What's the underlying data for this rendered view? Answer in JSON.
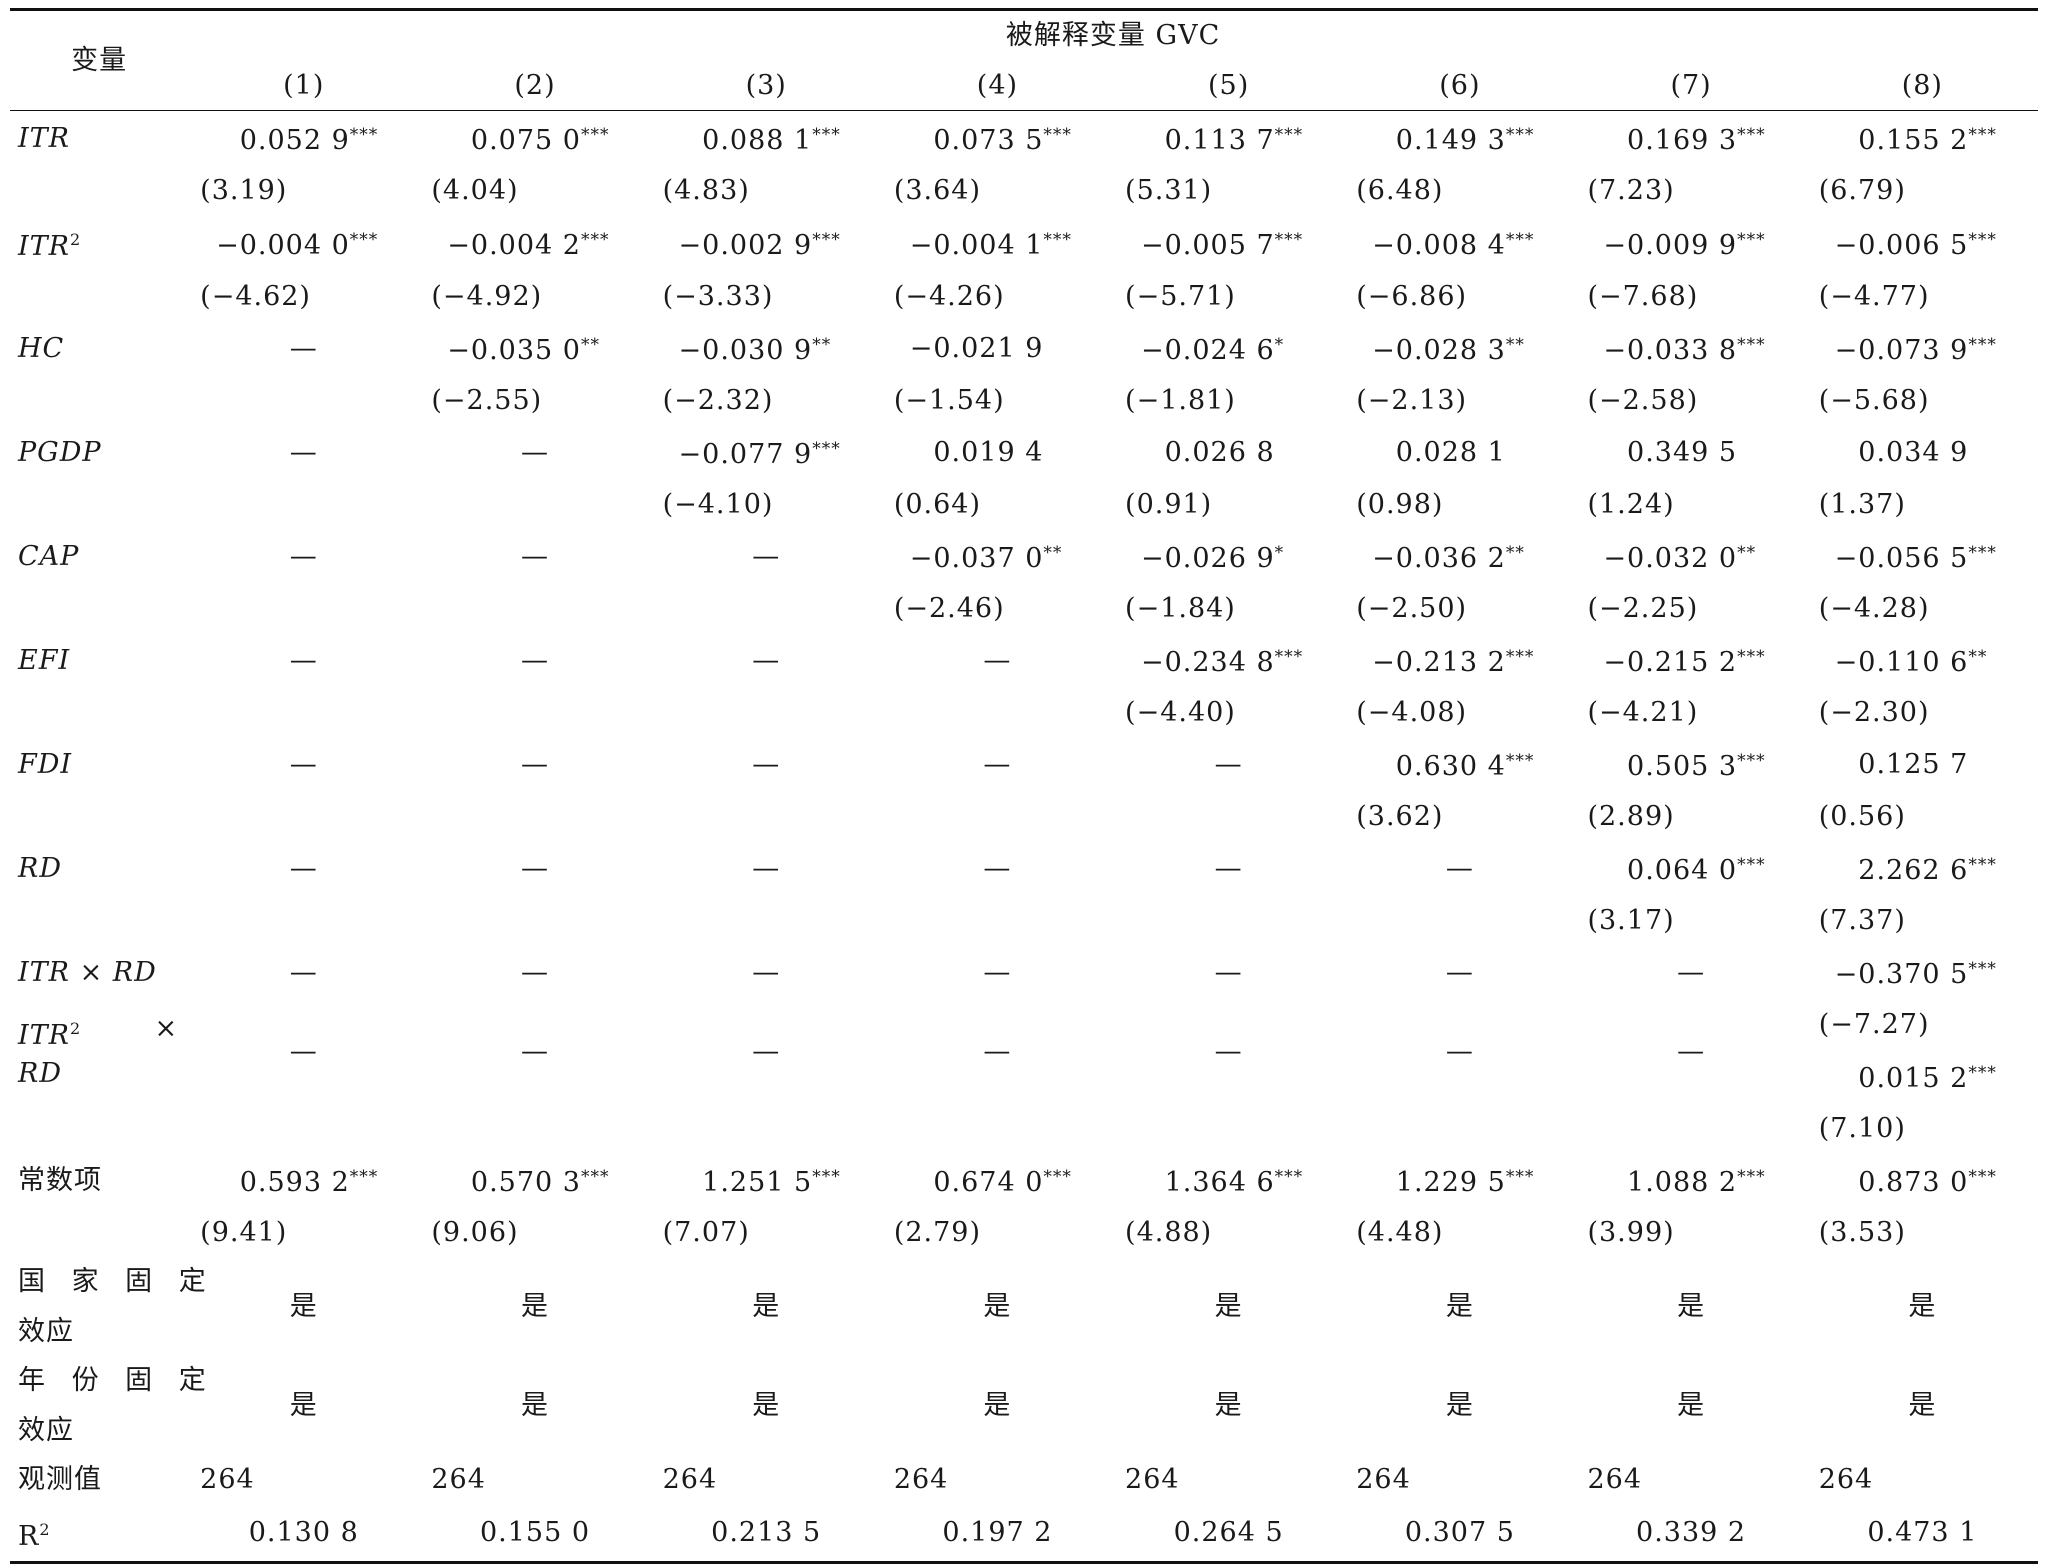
{
  "header": {
    "corner_label": "变量",
    "group_label": "被解释变量 GVC",
    "columns": [
      "(1)",
      "(2)",
      "(3)",
      "(4)",
      "(5)",
      "(6)",
      "(7)",
      "(8)"
    ]
  },
  "rows": [
    {
      "var": "ITR",
      "coef": [
        [
          "0.052 9",
          "***"
        ],
        [
          "0.075 0",
          "***"
        ],
        [
          "0.088 1",
          "***"
        ],
        [
          "0.073 5",
          "***"
        ],
        [
          "0.113 7",
          "***"
        ],
        [
          "0.149 3",
          "***"
        ],
        [
          "0.169 3",
          "***"
        ],
        [
          "0.155 2",
          "***"
        ]
      ],
      "t": [
        "(3.19)",
        "(4.04)",
        "(4.83)",
        "(3.64)",
        "(5.31)",
        "(6.48)",
        "(7.23)",
        "(6.79)"
      ]
    },
    {
      "var": "ITR",
      "var_sup": "2",
      "coef": [
        [
          "−0.004 0",
          "***"
        ],
        [
          "−0.004 2",
          "***"
        ],
        [
          "−0.002 9",
          "***"
        ],
        [
          "−0.004 1",
          "***"
        ],
        [
          "−0.005 7",
          "***"
        ],
        [
          "−0.008 4",
          "***"
        ],
        [
          "−0.009 9",
          "***"
        ],
        [
          "−0.006 5",
          "***"
        ]
      ],
      "t": [
        "(−4.62)",
        "(−4.92)",
        "(−3.33)",
        "(−4.26)",
        "(−5.71)",
        "(−6.86)",
        "(−7.68)",
        "(−4.77)"
      ]
    },
    {
      "var": "HC",
      "coef": [
        [
          "—",
          ""
        ],
        [
          "−0.035 0",
          "**"
        ],
        [
          "−0.030 9",
          "**"
        ],
        [
          "−0.021 9",
          ""
        ],
        [
          "−0.024 6",
          "*"
        ],
        [
          "−0.028 3",
          "**"
        ],
        [
          "−0.033 8",
          "***"
        ],
        [
          "−0.073 9",
          "***"
        ]
      ],
      "t": [
        "",
        "(−2.55)",
        "(−2.32)",
        "(−1.54)",
        "(−1.81)",
        "(−2.13)",
        "(−2.58)",
        "(−5.68)"
      ]
    },
    {
      "var": "PGDP",
      "coef": [
        [
          "—",
          ""
        ],
        [
          "—",
          ""
        ],
        [
          "−0.077 9",
          "***"
        ],
        [
          "0.019 4",
          ""
        ],
        [
          "0.026 8",
          ""
        ],
        [
          "0.028 1",
          ""
        ],
        [
          "0.349 5",
          ""
        ],
        [
          "0.034 9",
          ""
        ]
      ],
      "t": [
        "",
        "",
        "(−4.10)",
        "(0.64)",
        "(0.91)",
        "(0.98)",
        "(1.24)",
        "(1.37)"
      ]
    },
    {
      "var": "CAP",
      "coef": [
        [
          "—",
          ""
        ],
        [
          "—",
          ""
        ],
        [
          "—",
          ""
        ],
        [
          "−0.037 0",
          "**"
        ],
        [
          "−0.026 9",
          "*"
        ],
        [
          "−0.036 2",
          "**"
        ],
        [
          "−0.032 0",
          "**"
        ],
        [
          "−0.056 5",
          "***"
        ]
      ],
      "t": [
        "",
        "",
        "",
        "(−2.46)",
        "(−1.84)",
        "(−2.50)",
        "(−2.25)",
        "(−4.28)"
      ]
    },
    {
      "var": "EFI",
      "coef": [
        [
          "—",
          ""
        ],
        [
          "—",
          ""
        ],
        [
          "—",
          ""
        ],
        [
          "—",
          ""
        ],
        [
          "−0.234 8",
          "***"
        ],
        [
          "−0.213 2",
          "***"
        ],
        [
          "−0.215 2",
          "***"
        ],
        [
          "−0.110 6",
          "**"
        ]
      ],
      "t": [
        "",
        "",
        "",
        "",
        "(−4.40)",
        "(−4.08)",
        "(−4.21)",
        "(−2.30)"
      ]
    },
    {
      "var": "FDI",
      "coef": [
        [
          "—",
          ""
        ],
        [
          "—",
          ""
        ],
        [
          "—",
          ""
        ],
        [
          "—",
          ""
        ],
        [
          "—",
          ""
        ],
        [
          "0.630 4",
          "***"
        ],
        [
          "0.505 3",
          "***"
        ],
        [
          "0.125 7",
          ""
        ]
      ],
      "t": [
        "",
        "",
        "",
        "",
        "",
        "(3.62)",
        "(2.89)",
        "(0.56)"
      ]
    },
    {
      "var": "RD",
      "coef": [
        [
          "—",
          ""
        ],
        [
          "—",
          ""
        ],
        [
          "—",
          ""
        ],
        [
          "—",
          ""
        ],
        [
          "—",
          ""
        ],
        [
          "—",
          ""
        ],
        [
          "0.064 0",
          "***"
        ],
        [
          "2.262 6",
          "***"
        ]
      ],
      "t": [
        "",
        "",
        "",
        "",
        "",
        "",
        "(3.17)",
        "(7.37)"
      ]
    }
  ],
  "interaction_1": {
    "var": "ITR × RD",
    "dashes": [
      "—",
      "—",
      "—",
      "—",
      "—",
      "—",
      "—"
    ],
    "coef8": "−0.370 5",
    "star8": "***",
    "t8": "(−7.27)"
  },
  "interaction_2": {
    "var_line1": "ITR",
    "var_sup": "2",
    "var_times": "×",
    "var_line2": "RD",
    "dashes": [
      "—",
      "—",
      "—",
      "—",
      "—",
      "—",
      "—"
    ],
    "coef8": "0.015 2",
    "star8": "***",
    "t8": "(7.10)"
  },
  "constant": {
    "var": "常数项",
    "coef": [
      [
        "0.593 2",
        "***"
      ],
      [
        "0.570 3",
        "***"
      ],
      [
        "1.251 5",
        "***"
      ],
      [
        "0.674 0",
        "***"
      ],
      [
        "1.364 6",
        "***"
      ],
      [
        "1.229 5",
        "***"
      ],
      [
        "1.088 2",
        "***"
      ],
      [
        "0.873 0",
        "***"
      ]
    ],
    "t": [
      "(9.41)",
      "(9.06)",
      "(7.07)",
      "(2.79)",
      "(4.88)",
      "(4.48)",
      "(3.99)",
      "(3.53)"
    ]
  },
  "country_fe": {
    "var_line1": "国 家 固 定",
    "var_line2": "效应",
    "values": [
      "是",
      "是",
      "是",
      "是",
      "是",
      "是",
      "是",
      "是"
    ]
  },
  "year_fe": {
    "var_line1": "年 份 固 定",
    "var_line2": "效应",
    "values": [
      "是",
      "是",
      "是",
      "是",
      "是",
      "是",
      "是",
      "是"
    ]
  },
  "obs": {
    "var": "观测值",
    "values": [
      "264",
      "264",
      "264",
      "264",
      "264",
      "264",
      "264",
      "264"
    ]
  },
  "r2": {
    "var": "R",
    "var_sup": "2",
    "values": [
      "0.130 8",
      "0.155 0",
      "0.213 5",
      "0.197 2",
      "0.264 5",
      "0.307 5",
      "0.339 2",
      "0.473 1"
    ]
  }
}
